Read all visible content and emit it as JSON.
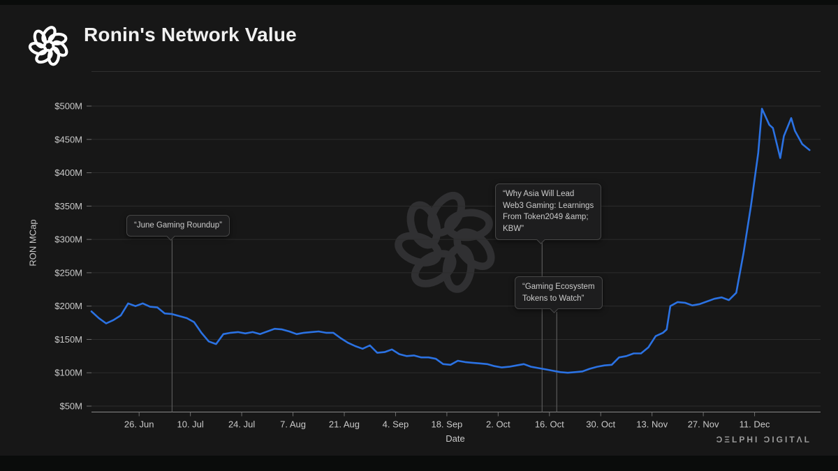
{
  "header": {
    "title": "Ronin's Network Value",
    "logo_icon": "delphi-knot-logo"
  },
  "watermark_icon": "delphi-knot-watermark",
  "footer": {
    "brand": "ƆΞLPHI ƆIGITΛL"
  },
  "chart_data": {
    "type": "line",
    "title": "Ronin's Network Value",
    "xlabel": "Date",
    "ylabel": "RON MCap",
    "legend": "none",
    "grid": "horizontal",
    "background": "#171717",
    "line_color": "#2b72e3",
    "grid_color": "#2c2c2c",
    "axis_color": "#8a8a8a",
    "annotation_line_color": "#5a5a5a",
    "ylim": [
      40,
      530
    ],
    "x_domain": [
      "2023-06-13",
      "2023-12-29"
    ],
    "y_ticks": [
      {
        "v": 50,
        "label": "$50M"
      },
      {
        "v": 100,
        "label": "$100M"
      },
      {
        "v": 150,
        "label": "$150M"
      },
      {
        "v": 200,
        "label": "$200M"
      },
      {
        "v": 250,
        "label": "$250M"
      },
      {
        "v": 300,
        "label": "$300M"
      },
      {
        "v": 350,
        "label": "$350M"
      },
      {
        "v": 400,
        "label": "$400M"
      },
      {
        "v": 450,
        "label": "$450M"
      },
      {
        "v": 500,
        "label": "$500M"
      }
    ],
    "x_ticks": [
      {
        "d": "2023-06-26",
        "label": "26. Jun"
      },
      {
        "d": "2023-07-10",
        "label": "10. Jul"
      },
      {
        "d": "2023-07-24",
        "label": "24. Jul"
      },
      {
        "d": "2023-08-07",
        "label": "7. Aug"
      },
      {
        "d": "2023-08-21",
        "label": "21. Aug"
      },
      {
        "d": "2023-09-04",
        "label": "4. Sep"
      },
      {
        "d": "2023-09-18",
        "label": "18. Sep"
      },
      {
        "d": "2023-10-02",
        "label": "2. Oct"
      },
      {
        "d": "2023-10-16",
        "label": "16. Oct"
      },
      {
        "d": "2023-10-30",
        "label": "30. Oct"
      },
      {
        "d": "2023-11-13",
        "label": "13. Nov"
      },
      {
        "d": "2023-11-27",
        "label": "27. Nov"
      },
      {
        "d": "2023-12-11",
        "label": "11. Dec"
      }
    ],
    "series": [
      {
        "name": "RON MCap",
        "unit": "USD millions",
        "dates": [
          "2023-06-13",
          "2023-06-15",
          "2023-06-17",
          "2023-06-19",
          "2023-06-21",
          "2023-06-23",
          "2023-06-25",
          "2023-06-27",
          "2023-06-29",
          "2023-07-01",
          "2023-07-03",
          "2023-07-05",
          "2023-07-07",
          "2023-07-09",
          "2023-07-11",
          "2023-07-13",
          "2023-07-15",
          "2023-07-17",
          "2023-07-19",
          "2023-07-21",
          "2023-07-23",
          "2023-07-25",
          "2023-07-27",
          "2023-07-29",
          "2023-07-31",
          "2023-08-02",
          "2023-08-04",
          "2023-08-06",
          "2023-08-08",
          "2023-08-10",
          "2023-08-12",
          "2023-08-14",
          "2023-08-16",
          "2023-08-18",
          "2023-08-20",
          "2023-08-22",
          "2023-08-24",
          "2023-08-26",
          "2023-08-28",
          "2023-08-30",
          "2023-09-01",
          "2023-09-03",
          "2023-09-05",
          "2023-09-07",
          "2023-09-09",
          "2023-09-11",
          "2023-09-13",
          "2023-09-15",
          "2023-09-17",
          "2023-09-19",
          "2023-09-21",
          "2023-09-23",
          "2023-09-25",
          "2023-09-27",
          "2023-09-29",
          "2023-10-01",
          "2023-10-03",
          "2023-10-05",
          "2023-10-07",
          "2023-10-09",
          "2023-10-11",
          "2023-10-13",
          "2023-10-15",
          "2023-10-17",
          "2023-10-19",
          "2023-10-21",
          "2023-10-23",
          "2023-10-25",
          "2023-10-27",
          "2023-10-29",
          "2023-10-31",
          "2023-11-02",
          "2023-11-04",
          "2023-11-06",
          "2023-11-08",
          "2023-11-10",
          "2023-11-12",
          "2023-11-14",
          "2023-11-16",
          "2023-11-17",
          "2023-11-18",
          "2023-11-20",
          "2023-11-22",
          "2023-11-24",
          "2023-11-26",
          "2023-11-28",
          "2023-11-30",
          "2023-12-02",
          "2023-12-04",
          "2023-12-06",
          "2023-12-08",
          "2023-12-10",
          "2023-12-12",
          "2023-12-13",
          "2023-12-15",
          "2023-12-16",
          "2023-12-18",
          "2023-12-19",
          "2023-12-21",
          "2023-12-22",
          "2023-12-24",
          "2023-12-26"
        ],
        "values": [
          192,
          182,
          174,
          179,
          186,
          204,
          200,
          204,
          199,
          198,
          189,
          188,
          185,
          182,
          176,
          160,
          147,
          143,
          158,
          160,
          161,
          159,
          161,
          158,
          162,
          166,
          165,
          162,
          158,
          160,
          161,
          162,
          160,
          160,
          152,
          145,
          140,
          136,
          141,
          130,
          131,
          135,
          128,
          125,
          126,
          123,
          123,
          121,
          113,
          112,
          118,
          116,
          115,
          114,
          113,
          110,
          108,
          109,
          111,
          113,
          109,
          107,
          105,
          103,
          101,
          100,
          101,
          102,
          106,
          109,
          111,
          112,
          123,
          125,
          129,
          129,
          138,
          155,
          160,
          165,
          200,
          206,
          205,
          201,
          203,
          207,
          211,
          213,
          209,
          220,
          280,
          350,
          430,
          496,
          472,
          467,
          422,
          455,
          482,
          463,
          443,
          434
        ]
      }
    ],
    "annotations": [
      {
        "text": "“June Gaming Roundup”",
        "date": "2023-07-05"
      },
      {
        "text": "“Why Asia Will Lead\nWeb3 Gaming: Learnings\nFrom Token2049 &amp;\nKBW”",
        "date": "2023-10-14"
      },
      {
        "text": "“Gaming Ecosystem\nTokens to Watch”",
        "date": "2023-10-18"
      }
    ]
  }
}
